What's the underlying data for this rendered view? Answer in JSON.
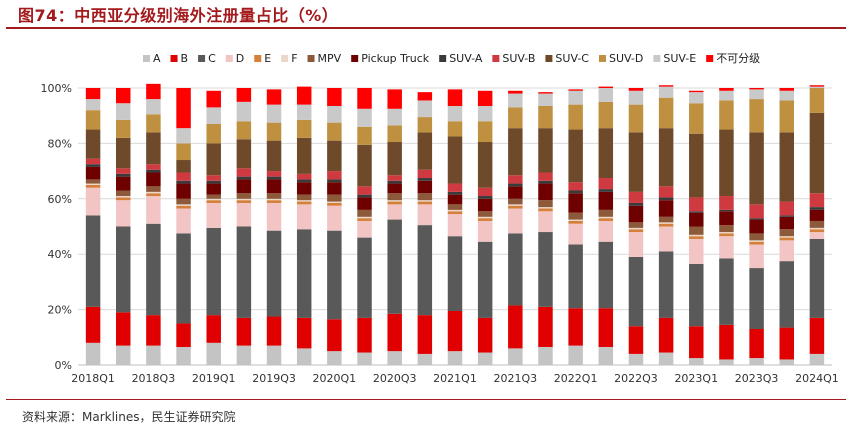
{
  "header": {
    "title": "图74：中西亚分级别海外注册量占比（%）"
  },
  "footer": {
    "source": "资料来源：Marklines，民生证券研究院"
  },
  "chart_data": {
    "type": "bar",
    "stacked": true,
    "ylim": [
      0,
      100
    ],
    "yticks": [
      "0%",
      "20%",
      "40%",
      "60%",
      "80%",
      "100%"
    ],
    "xticklabels": [
      "2018Q1",
      "2018Q3",
      "2019Q1",
      "2019Q3",
      "2020Q1",
      "2020Q3",
      "2021Q1",
      "2021Q3",
      "2022Q1",
      "2022Q3",
      "2023Q1",
      "2023Q3",
      "2024Q1"
    ],
    "categories": [
      "2018Q1",
      "2018Q2",
      "2018Q3",
      "2018Q4",
      "2019Q1",
      "2019Q2",
      "2019Q3",
      "2019Q4",
      "2020Q1",
      "2020Q2",
      "2020Q3",
      "2020Q4",
      "2021Q1",
      "2021Q2",
      "2021Q3",
      "2021Q4",
      "2022Q1",
      "2022Q2",
      "2022Q3",
      "2022Q4",
      "2023Q1",
      "2023Q2",
      "2023Q3",
      "2023Q4",
      "2024Q1"
    ],
    "legend": [
      "A",
      "B",
      "C",
      "D",
      "E",
      "F",
      "MPV",
      "Pickup Truck",
      "SUV-A",
      "SUV-B",
      "SUV-C",
      "SUV-D",
      "SUV-E",
      "不可分级"
    ],
    "colors": [
      "#c4c4c4",
      "#e00000",
      "#595959",
      "#f2c4c4",
      "#d47f3a",
      "#ead7c9",
      "#8c5a3a",
      "#6e0000",
      "#3a3a3a",
      "#cf3a40",
      "#6e4a2a",
      "#bf9040",
      "#c9c9c9",
      "#ff0000"
    ],
    "series": [
      {
        "name": "A",
        "values": [
          8,
          7,
          7,
          6.5,
          8,
          7,
          7,
          6,
          5,
          4.5,
          5,
          4,
          5,
          4.5,
          6,
          6.5,
          7,
          6.5,
          4,
          4.5,
          2.5,
          2,
          2.5,
          2,
          4
        ]
      },
      {
        "name": "B",
        "values": [
          13,
          12,
          11,
          8.5,
          10,
          10,
          10.5,
          11,
          11.5,
          12.5,
          13.5,
          14,
          14.5,
          12.5,
          15.5,
          14.5,
          13.5,
          14,
          10,
          12.5,
          11.5,
          12.5,
          10.5,
          11.5,
          13
        ]
      },
      {
        "name": "C",
        "values": [
          33,
          31,
          33,
          32.5,
          31.5,
          33,
          31,
          32,
          32,
          29,
          34,
          32.5,
          27,
          27.5,
          26,
          27,
          23,
          24,
          25,
          24,
          22.5,
          24,
          22,
          24,
          28.5
        ]
      },
      {
        "name": "D",
        "values": [
          10,
          9.5,
          10,
          9,
          9,
          8.5,
          10,
          9,
          9,
          6,
          5.5,
          7.5,
          8,
          7.5,
          9,
          7.5,
          7.5,
          7.5,
          9,
          9,
          9,
          8,
          8.5,
          7.5,
          2.5
        ]
      },
      {
        "name": "E",
        "values": [
          1,
          1,
          1,
          1,
          1,
          1,
          1,
          1,
          1,
          1,
          1,
          1,
          1,
          1,
          1,
          1,
          1,
          1,
          1,
          1,
          1,
          1,
          1,
          1,
          1
        ]
      },
      {
        "name": "F",
        "values": [
          0.5,
          0.5,
          0.5,
          0.5,
          0.5,
          0.5,
          0.5,
          0.5,
          0.5,
          0.5,
          0.5,
          0.5,
          0.5,
          0.5,
          0.5,
          0.5,
          0.5,
          0.5,
          0.5,
          0.5,
          0.5,
          0.5,
          0.5,
          0.5,
          0.5
        ]
      },
      {
        "name": "MPV",
        "values": [
          1.5,
          2,
          2,
          2,
          1.5,
          2,
          2,
          2,
          2.5,
          2.5,
          2.5,
          2.5,
          2,
          2,
          2,
          2.5,
          2.5,
          2.5,
          2,
          2,
          3,
          2.5,
          2.5,
          2.5,
          2.5
        ]
      },
      {
        "name": "Pickup Truck",
        "values": [
          4.5,
          5,
          5,
          5.5,
          4,
          5,
          5,
          4.5,
          4.5,
          4.5,
          3.5,
          4.5,
          3.5,
          4.5,
          4.5,
          6,
          7,
          6.5,
          6,
          6,
          5,
          5,
          5,
          4.5,
          4
        ]
      },
      {
        "name": "SUV-A",
        "values": [
          1,
          1,
          1,
          1,
          1,
          1,
          1,
          1,
          1,
          1,
          1,
          1,
          1,
          1,
          1,
          1,
          1,
          1,
          1,
          1,
          0.5,
          0.5,
          0.5,
          0.5,
          1
        ]
      },
      {
        "name": "SUV-B",
        "values": [
          2,
          2,
          2,
          3,
          2,
          3,
          2,
          2,
          3,
          3,
          2,
          3,
          3,
          3,
          3,
          3,
          3,
          4,
          4,
          4,
          5,
          5,
          5,
          5,
          5
        ]
      },
      {
        "name": "SUV-C",
        "values": [
          10.5,
          11,
          11.5,
          4.5,
          11.5,
          10.5,
          11,
          13,
          11,
          15,
          12,
          13.5,
          17,
          16.5,
          17,
          16,
          19,
          18,
          21.5,
          21,
          23,
          24,
          26,
          25,
          29
        ]
      },
      {
        "name": "SUV-D",
        "values": [
          7,
          6.5,
          6.5,
          6,
          7,
          6.5,
          6.5,
          6.5,
          6.5,
          6.5,
          6,
          5.5,
          5.5,
          7.5,
          7.5,
          8,
          9,
          9.5,
          10,
          11,
          11,
          10.5,
          12,
          11.5,
          9
        ]
      },
      {
        "name": "SUV-E",
        "values": [
          4,
          6,
          5.5,
          5.5,
          6,
          7,
          6.5,
          5.5,
          6,
          6.5,
          6,
          6,
          5.5,
          5.5,
          5,
          4.5,
          5,
          5,
          5,
          4,
          4,
          3.5,
          3.5,
          3.5,
          0.5
        ]
      },
      {
        "name": "不可分级",
        "values": [
          4,
          5.5,
          5.5,
          14.5,
          6,
          5,
          5.5,
          6.5,
          6.5,
          7.5,
          7,
          3,
          6,
          5.5,
          1,
          0.5,
          0.5,
          0.5,
          1,
          0.5,
          0.5,
          1,
          0.5,
          1,
          0.5
        ]
      }
    ]
  }
}
